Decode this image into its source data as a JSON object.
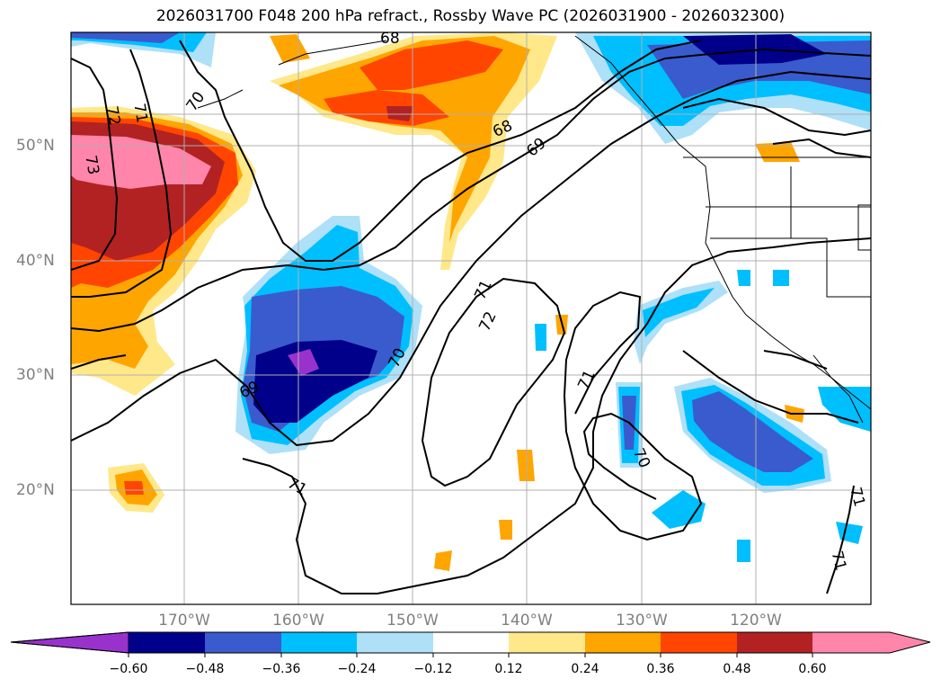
{
  "title": "2026031700 F048 200 hPa refract., Rossby Wave PC (2026031900 - 2026032300)",
  "lat_labels": [
    "50°N",
    "40°N",
    "30°N",
    "20°N"
  ],
  "lon_labels": [
    "170°W",
    "160°W",
    "150°W",
    "140°W",
    "130°W",
    "120°W"
  ],
  "colorbar": {
    "ticks": [
      "−0.60",
      "−0.48",
      "−0.36",
      "−0.24",
      "−0.12",
      "0.12",
      "0.24",
      "0.36",
      "0.48",
      "0.60"
    ],
    "colors": [
      "#9932cc",
      "#00008b",
      "#3a5bcd",
      "#00bfff",
      "#aee0f8",
      "#ffffff",
      "#ffe88a",
      "#ffa500",
      "#ff4500",
      "#b22222",
      "#ff85aa"
    ]
  },
  "contour_labels": [
    "68",
    "70",
    "72",
    "71",
    "73",
    "68",
    "69",
    "71",
    "72",
    "70",
    "69",
    "71",
    "71",
    "70",
    "71",
    "71"
  ],
  "colors": {
    "contour": "#000000",
    "grid": "#b0b0b0",
    "coast": "#000000"
  }
}
